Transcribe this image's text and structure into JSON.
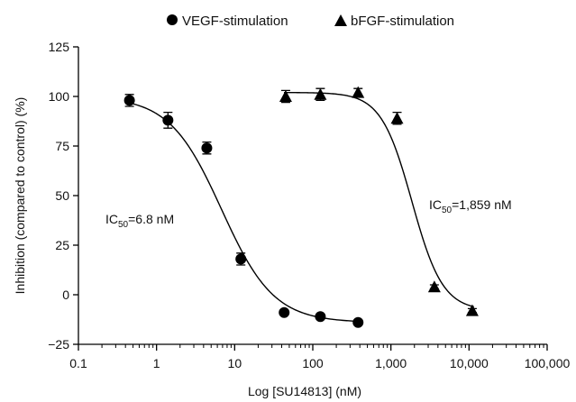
{
  "chart_data": {
    "type": "scatter",
    "xlabel": "Log [SU14813] (nM)",
    "ylabel": "Inhibition (compared to control) (%)",
    "xscale": "log",
    "xlim": [
      0.1,
      100000
    ],
    "ylim": [
      -25,
      125
    ],
    "xticks": [
      0.1,
      1,
      10,
      100,
      1000,
      10000,
      100000
    ],
    "xtick_labels": [
      "0.1",
      "1",
      "10",
      "100",
      "1,000",
      "10,000",
      "100,000"
    ],
    "yticks": [
      -25,
      0,
      25,
      50,
      75,
      100,
      125
    ],
    "ytick_labels": [
      "−25",
      "0",
      "25",
      "50",
      "75",
      "100",
      "125"
    ],
    "legend_position": "top",
    "series": [
      {
        "name": "VEGF-stimulation",
        "marker": "circle",
        "color": "#000000",
        "x": [
          0.45,
          1.4,
          4.4,
          12,
          43,
          125,
          380
        ],
        "y": [
          98,
          88,
          74,
          18,
          -9,
          -11,
          -14
        ],
        "err": [
          3,
          4,
          3,
          3,
          1,
          1,
          1
        ],
        "fit": {
          "top": 100,
          "bottom": -14,
          "ic50": 6.8,
          "hill": 1.3
        }
      },
      {
        "name": "bFGF-stimulation",
        "marker": "triangle",
        "color": "#000000",
        "x": [
          45,
          125,
          380,
          1200,
          3600,
          11000
        ],
        "y": [
          100,
          101,
          102,
          89,
          4,
          -8
        ],
        "err": [
          3,
          3,
          2,
          3,
          1,
          1
        ],
        "fit": {
          "top": 102,
          "bottom": -8,
          "ic50": 1859,
          "hill": 2.2
        }
      }
    ],
    "annotations": [
      {
        "main": "IC",
        "sub": "50",
        "rest": "=6.8 nM"
      },
      {
        "main": "IC",
        "sub": "50",
        "rest": "=1,859 nM"
      }
    ]
  }
}
